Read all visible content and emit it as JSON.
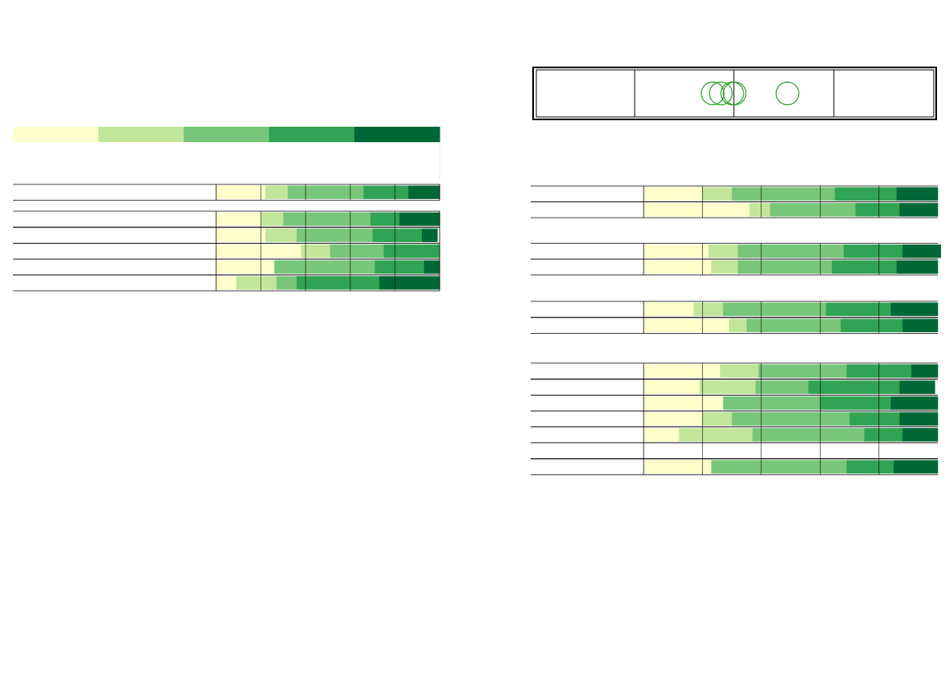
{
  "colors": {
    "c1": "#ffffcc",
    "c2": "#c2e699",
    "c3": "#78c679",
    "c4": "#31a354",
    "c5": "#006837",
    "marker": "#2ca02c",
    "line": "#000000"
  },
  "legend": {
    "colors": [
      "#ffffcc",
      "#c2e699",
      "#78c679",
      "#31a354",
      "#006837"
    ]
  },
  "key_box": {
    "markers_panel1": 3,
    "markers_panel2": 1
  },
  "chart_data": [
    {
      "type": "bar",
      "orientation": "horizontal",
      "stacked": true,
      "percent": true,
      "title": "",
      "xlabel": "",
      "ylabel": "",
      "xlim": [
        0,
        100
      ],
      "categories": [
        "",
        "",
        "",
        "",
        ""
      ],
      "groups": [
        {
          "rows": [
            [
              22,
              10,
              34,
              20,
              14
            ]
          ]
        },
        {
          "rows": [
            [
              20,
              10,
              39,
              13,
              18
            ],
            [
              22,
              14,
              34,
              22,
              7
            ],
            [
              38,
              13,
              24,
              25,
              0
            ],
            [
              26,
              0,
              45,
              22,
              7
            ],
            [
              9,
              18,
              9,
              37,
              27
            ]
          ]
        }
      ],
      "series": [
        {
          "color": "#ffffcc"
        },
        {
          "color": "#c2e699"
        },
        {
          "color": "#78c679"
        },
        {
          "color": "#31a354"
        },
        {
          "color": "#006837"
        }
      ]
    },
    {
      "type": "bar",
      "orientation": "horizontal",
      "stacked": true,
      "percent": true,
      "title": "",
      "xlabel": "",
      "ylabel": "",
      "xlim": [
        0,
        100
      ],
      "groups": [
        {
          "rows": [
            [
              20,
              10,
              35,
              21,
              14
            ],
            [
              36,
              7,
              29,
              15,
              13
            ]
          ]
        },
        {
          "rows": [
            [
              22,
              10,
              36,
              20,
              13
            ],
            [
              23,
              9,
              32,
              22,
              14
            ]
          ]
        },
        {
          "rows": [
            [
              17,
              10,
              35,
              22,
              16
            ],
            [
              29,
              6,
              32,
              21,
              12
            ]
          ]
        },
        {
          "rows": [
            [
              26,
              13,
              30,
              22,
              9
            ],
            [
              19,
              19,
              18,
              31,
              12
            ],
            [
              27,
              0,
              33,
              24,
              16
            ],
            [
              20,
              10,
              40,
              17,
              13
            ],
            [
              12,
              25,
              38,
              13,
              12
            ],
            [
              0,
              0,
              0,
              0,
              0
            ],
            [
              23,
              0,
              46,
              16,
              15
            ]
          ]
        }
      ],
      "series": [
        {
          "color": "#ffffcc"
        },
        {
          "color": "#c2e699"
        },
        {
          "color": "#78c679"
        },
        {
          "color": "#31a354"
        },
        {
          "color": "#006837"
        }
      ]
    }
  ]
}
